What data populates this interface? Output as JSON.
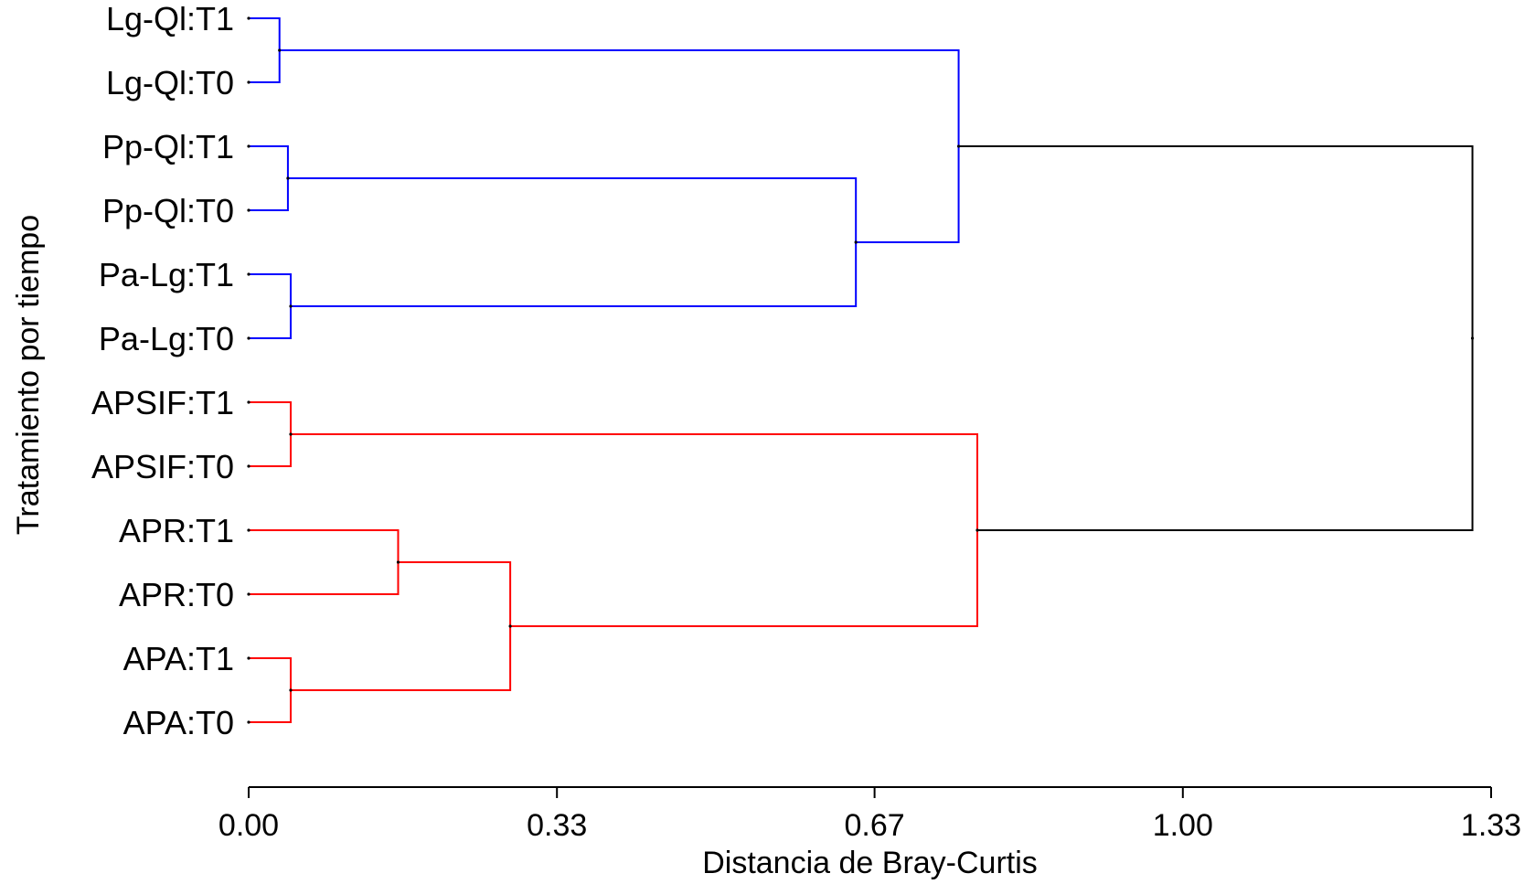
{
  "chart_data": {
    "type": "dendrogram",
    "xlabel": "Distancia de Bray-Curtis",
    "ylabel": "Tratamiento por tiempo",
    "xlim": [
      0,
      1.33
    ],
    "xticks": [
      0,
      0.33,
      0.67,
      1.0,
      1.33
    ],
    "xtick_labels": [
      "0.00",
      "0.33",
      "0.67",
      "1.00",
      "1.33"
    ],
    "leaves": [
      "Lg-Ql:T1",
      "Lg-Ql:T0",
      "Pp-Ql:T1",
      "Pp-Ql:T0",
      "Pa-Lg:T1",
      "Pa-Lg:T0",
      "APSIF:T1",
      "APSIF:T0",
      "APR:T1",
      "APR:T0",
      "APA:T1",
      "APA:T0"
    ],
    "colors": {
      "cluster_1": "#0000ff",
      "cluster_2": "#ff0000",
      "root": "#000000"
    },
    "merges": [
      {
        "id": "m1",
        "left": "Lg-Ql:T1",
        "right": "Lg-Ql:T0",
        "height": 0.033,
        "color": "cluster_1"
      },
      {
        "id": "m2",
        "left": "Pp-Ql:T1",
        "right": "Pp-Ql:T0",
        "height": 0.042,
        "color": "cluster_1"
      },
      {
        "id": "m3",
        "left": "Pa-Lg:T1",
        "right": "Pa-Lg:T0",
        "height": 0.045,
        "color": "cluster_1"
      },
      {
        "id": "m4",
        "left": "m2",
        "right": "m3",
        "height": 0.65,
        "color": "cluster_1"
      },
      {
        "id": "m5",
        "left": "m1",
        "right": "m4",
        "height": 0.76,
        "color": "cluster_1"
      },
      {
        "id": "m6",
        "left": "APSIF:T1",
        "right": "APSIF:T0",
        "height": 0.045,
        "color": "cluster_2"
      },
      {
        "id": "m7",
        "left": "APR:T1",
        "right": "APR:T0",
        "height": 0.16,
        "color": "cluster_2"
      },
      {
        "id": "m8",
        "left": "APA:T1",
        "right": "APA:T0",
        "height": 0.045,
        "color": "cluster_2"
      },
      {
        "id": "m9",
        "left": "m7",
        "right": "m8",
        "height": 0.28,
        "color": "cluster_2"
      },
      {
        "id": "m10",
        "left": "m6",
        "right": "m9",
        "height": 0.78,
        "color": "cluster_2"
      },
      {
        "id": "m11",
        "left": "m5",
        "right": "m10",
        "height": 1.31,
        "color": "root"
      }
    ]
  }
}
